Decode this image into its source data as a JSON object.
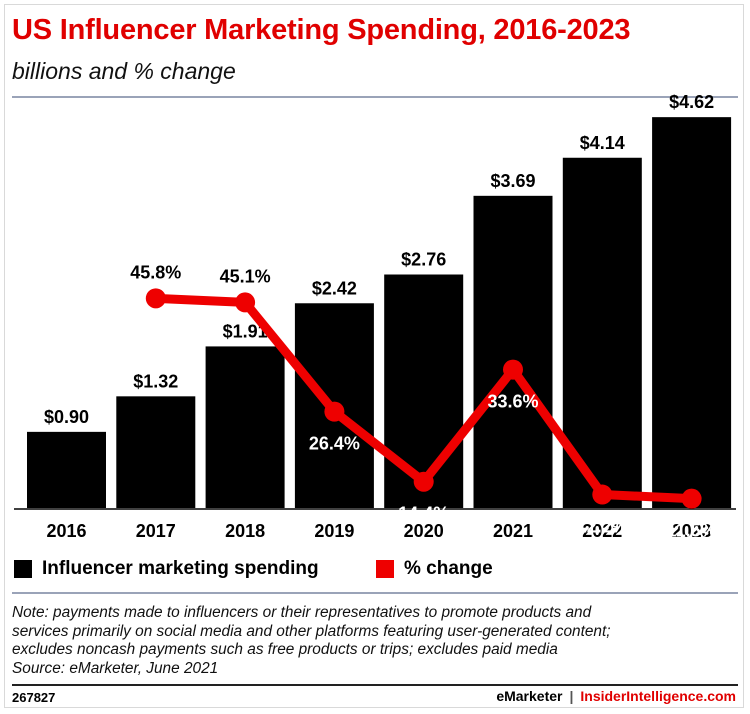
{
  "header": {
    "title": "US Influencer Marketing Spending, 2016-2023",
    "subtitle": "billions and % change"
  },
  "chart_data": {
    "type": "bar",
    "categories": [
      "2016",
      "2017",
      "2018",
      "2019",
      "2020",
      "2021",
      "2022",
      "2023"
    ],
    "series": [
      {
        "name": "Influencer marketing spending",
        "type": "bar",
        "color": "#000000",
        "values": [
          0.9,
          1.32,
          1.91,
          2.42,
          2.76,
          3.69,
          4.14,
          4.62
        ],
        "labels": [
          "$0.90",
          "$1.32",
          "$1.91",
          "$2.42",
          "$2.76",
          "$3.69",
          "$4.14",
          "$4.62"
        ]
      },
      {
        "name": "% change",
        "type": "line",
        "color": "#ee0000",
        "values": [
          null,
          45.8,
          45.1,
          26.4,
          14.4,
          33.6,
          12.2,
          11.5
        ],
        "labels": [
          "",
          "45.8%",
          "45.1%",
          "26.4%",
          "14.4%",
          "33.6%",
          "12.2%",
          "11.5%"
        ]
      }
    ],
    "legend_position": "bottom-left",
    "grid": false
  },
  "legend": {
    "bar_label": "Influencer marketing spending",
    "line_label": "% change"
  },
  "note": {
    "lines": [
      "Note: payments made to influencers or their representatives to promote products and",
      "services primarily on social media and other platforms featuring user-generated content;",
      "excludes noncash payments such as free products or trips; excludes paid media",
      "Source: eMarketer, June 2021"
    ]
  },
  "footer": {
    "id": "267827",
    "brand": "eMarketer",
    "separator": "|",
    "site": "InsiderIntelligence.com"
  }
}
